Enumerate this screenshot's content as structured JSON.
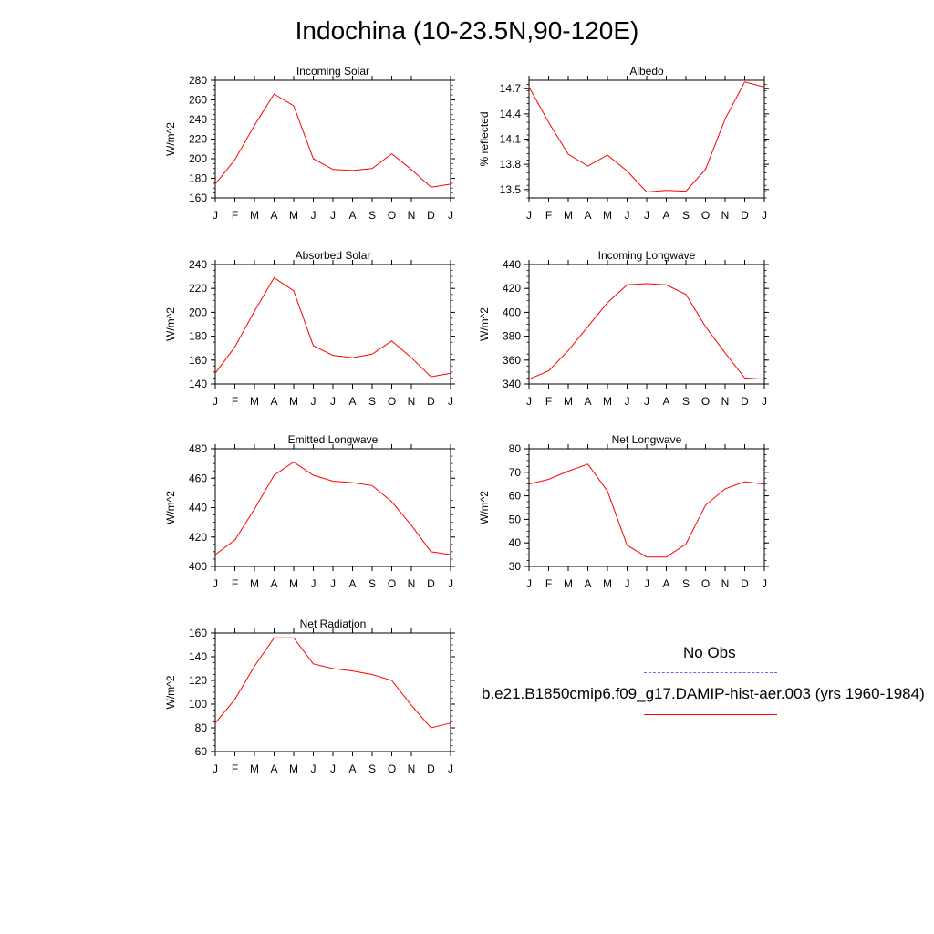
{
  "title": "Indochina (10-23.5N,90-120E)",
  "legend": {
    "obs_label": "No Obs",
    "model_label": "b.e21.B1850cmip6.f09_g17.DAMIP-hist-aer.003 (yrs 1960-1984)",
    "obs_color": "#6666ff",
    "model_color": "#ff0000"
  },
  "chart_data": [
    {
      "type": "line",
      "title": "Incoming Solar",
      "xlabel": "",
      "ylabel": "W/m^2",
      "categories": [
        "J",
        "F",
        "M",
        "A",
        "M",
        "J",
        "J",
        "A",
        "S",
        "O",
        "N",
        "D",
        "J"
      ],
      "ylim": [
        160,
        280
      ],
      "yticks": [
        160,
        180,
        200,
        220,
        240,
        260,
        280
      ],
      "ytick_labels": [
        "160",
        "180",
        "200",
        "220",
        "240",
        "260",
        "280"
      ],
      "series": [
        {
          "values": [
            174,
            199,
            234,
            266,
            254,
            200,
            189,
            188,
            190,
            205,
            189,
            171,
            174
          ],
          "color": "#ff0000"
        }
      ]
    },
    {
      "type": "line",
      "title": "Albedo",
      "xlabel": "",
      "ylabel": "% reflected",
      "categories": [
        "J",
        "F",
        "M",
        "A",
        "M",
        "J",
        "J",
        "A",
        "S",
        "O",
        "N",
        "D",
        "J"
      ],
      "ylim": [
        13.4,
        14.8
      ],
      "yticks": [
        13.5,
        13.8,
        14.1,
        14.4,
        14.7
      ],
      "ytick_labels": [
        "13.5",
        "13.8",
        "14.1",
        "14.4",
        "14.7"
      ],
      "series": [
        {
          "values": [
            14.72,
            14.3,
            13.92,
            13.78,
            13.91,
            13.72,
            13.47,
            13.49,
            13.48,
            13.74,
            14.34,
            14.78,
            14.72
          ],
          "color": "#ff0000"
        }
      ]
    },
    {
      "type": "line",
      "title": "Absorbed Solar",
      "xlabel": "",
      "ylabel": "W/m^2",
      "categories": [
        "J",
        "F",
        "M",
        "A",
        "M",
        "J",
        "J",
        "A",
        "S",
        "O",
        "N",
        "D",
        "J"
      ],
      "ylim": [
        140,
        240
      ],
      "yticks": [
        140,
        160,
        180,
        200,
        220,
        240
      ],
      "ytick_labels": [
        "140",
        "160",
        "180",
        "200",
        "220",
        "240"
      ],
      "series": [
        {
          "values": [
            149,
            171,
            201,
            229,
            218,
            172,
            164,
            162,
            165,
            176,
            162,
            146,
            149
          ],
          "color": "#ff0000"
        }
      ]
    },
    {
      "type": "line",
      "title": "Incoming Longwave",
      "xlabel": "",
      "ylabel": "W/m^2",
      "categories": [
        "J",
        "F",
        "M",
        "A",
        "M",
        "J",
        "J",
        "A",
        "S",
        "O",
        "N",
        "D",
        "J"
      ],
      "ylim": [
        340,
        440
      ],
      "yticks": [
        340,
        360,
        380,
        400,
        420,
        440
      ],
      "ytick_labels": [
        "340",
        "360",
        "380",
        "400",
        "420",
        "440"
      ],
      "series": [
        {
          "values": [
            344,
            351,
            368,
            388,
            408,
            423,
            424,
            423,
            415,
            388,
            366,
            345,
            344
          ],
          "color": "#ff0000"
        }
      ]
    },
    {
      "type": "line",
      "title": "Emitted Longwave",
      "xlabel": "",
      "ylabel": "W/m^2",
      "categories": [
        "J",
        "F",
        "M",
        "A",
        "M",
        "J",
        "J",
        "A",
        "S",
        "O",
        "N",
        "D",
        "J"
      ],
      "ylim": [
        400,
        480
      ],
      "yticks": [
        400,
        420,
        440,
        460,
        480
      ],
      "ytick_labels": [
        "400",
        "420",
        "440",
        "460",
        "480"
      ],
      "series": [
        {
          "values": [
            408,
            418,
            439,
            462,
            471,
            462,
            458,
            457,
            455,
            444,
            428,
            410,
            408
          ],
          "color": "#ff0000"
        }
      ]
    },
    {
      "type": "line",
      "title": "Net Longwave",
      "xlabel": "",
      "ylabel": "W/m^2",
      "categories": [
        "J",
        "F",
        "M",
        "A",
        "M",
        "J",
        "J",
        "A",
        "S",
        "O",
        "N",
        "D",
        "J"
      ],
      "ylim": [
        30,
        80
      ],
      "yticks": [
        30,
        40,
        50,
        60,
        70,
        80
      ],
      "ytick_labels": [
        "30",
        "40",
        "50",
        "60",
        "70",
        "80"
      ],
      "series": [
        {
          "values": [
            65,
            67,
            70.5,
            73.5,
            62,
            39,
            34,
            34,
            39.5,
            56,
            63,
            66,
            65
          ],
          "color": "#ff0000"
        }
      ]
    },
    {
      "type": "line",
      "title": "Net Radiation",
      "xlabel": "",
      "ylabel": "W/m^2",
      "categories": [
        "J",
        "F",
        "M",
        "A",
        "M",
        "J",
        "J",
        "A",
        "S",
        "O",
        "N",
        "D",
        "J"
      ],
      "ylim": [
        60,
        160
      ],
      "yticks": [
        60,
        80,
        100,
        120,
        140,
        160
      ],
      "ytick_labels": [
        "60",
        "80",
        "100",
        "120",
        "140",
        "160"
      ],
      "series": [
        {
          "values": [
            84,
            104,
            132,
            156,
            156,
            134,
            130,
            128,
            125,
            120,
            99,
            80,
            84
          ],
          "color": "#ff0000"
        }
      ]
    }
  ]
}
